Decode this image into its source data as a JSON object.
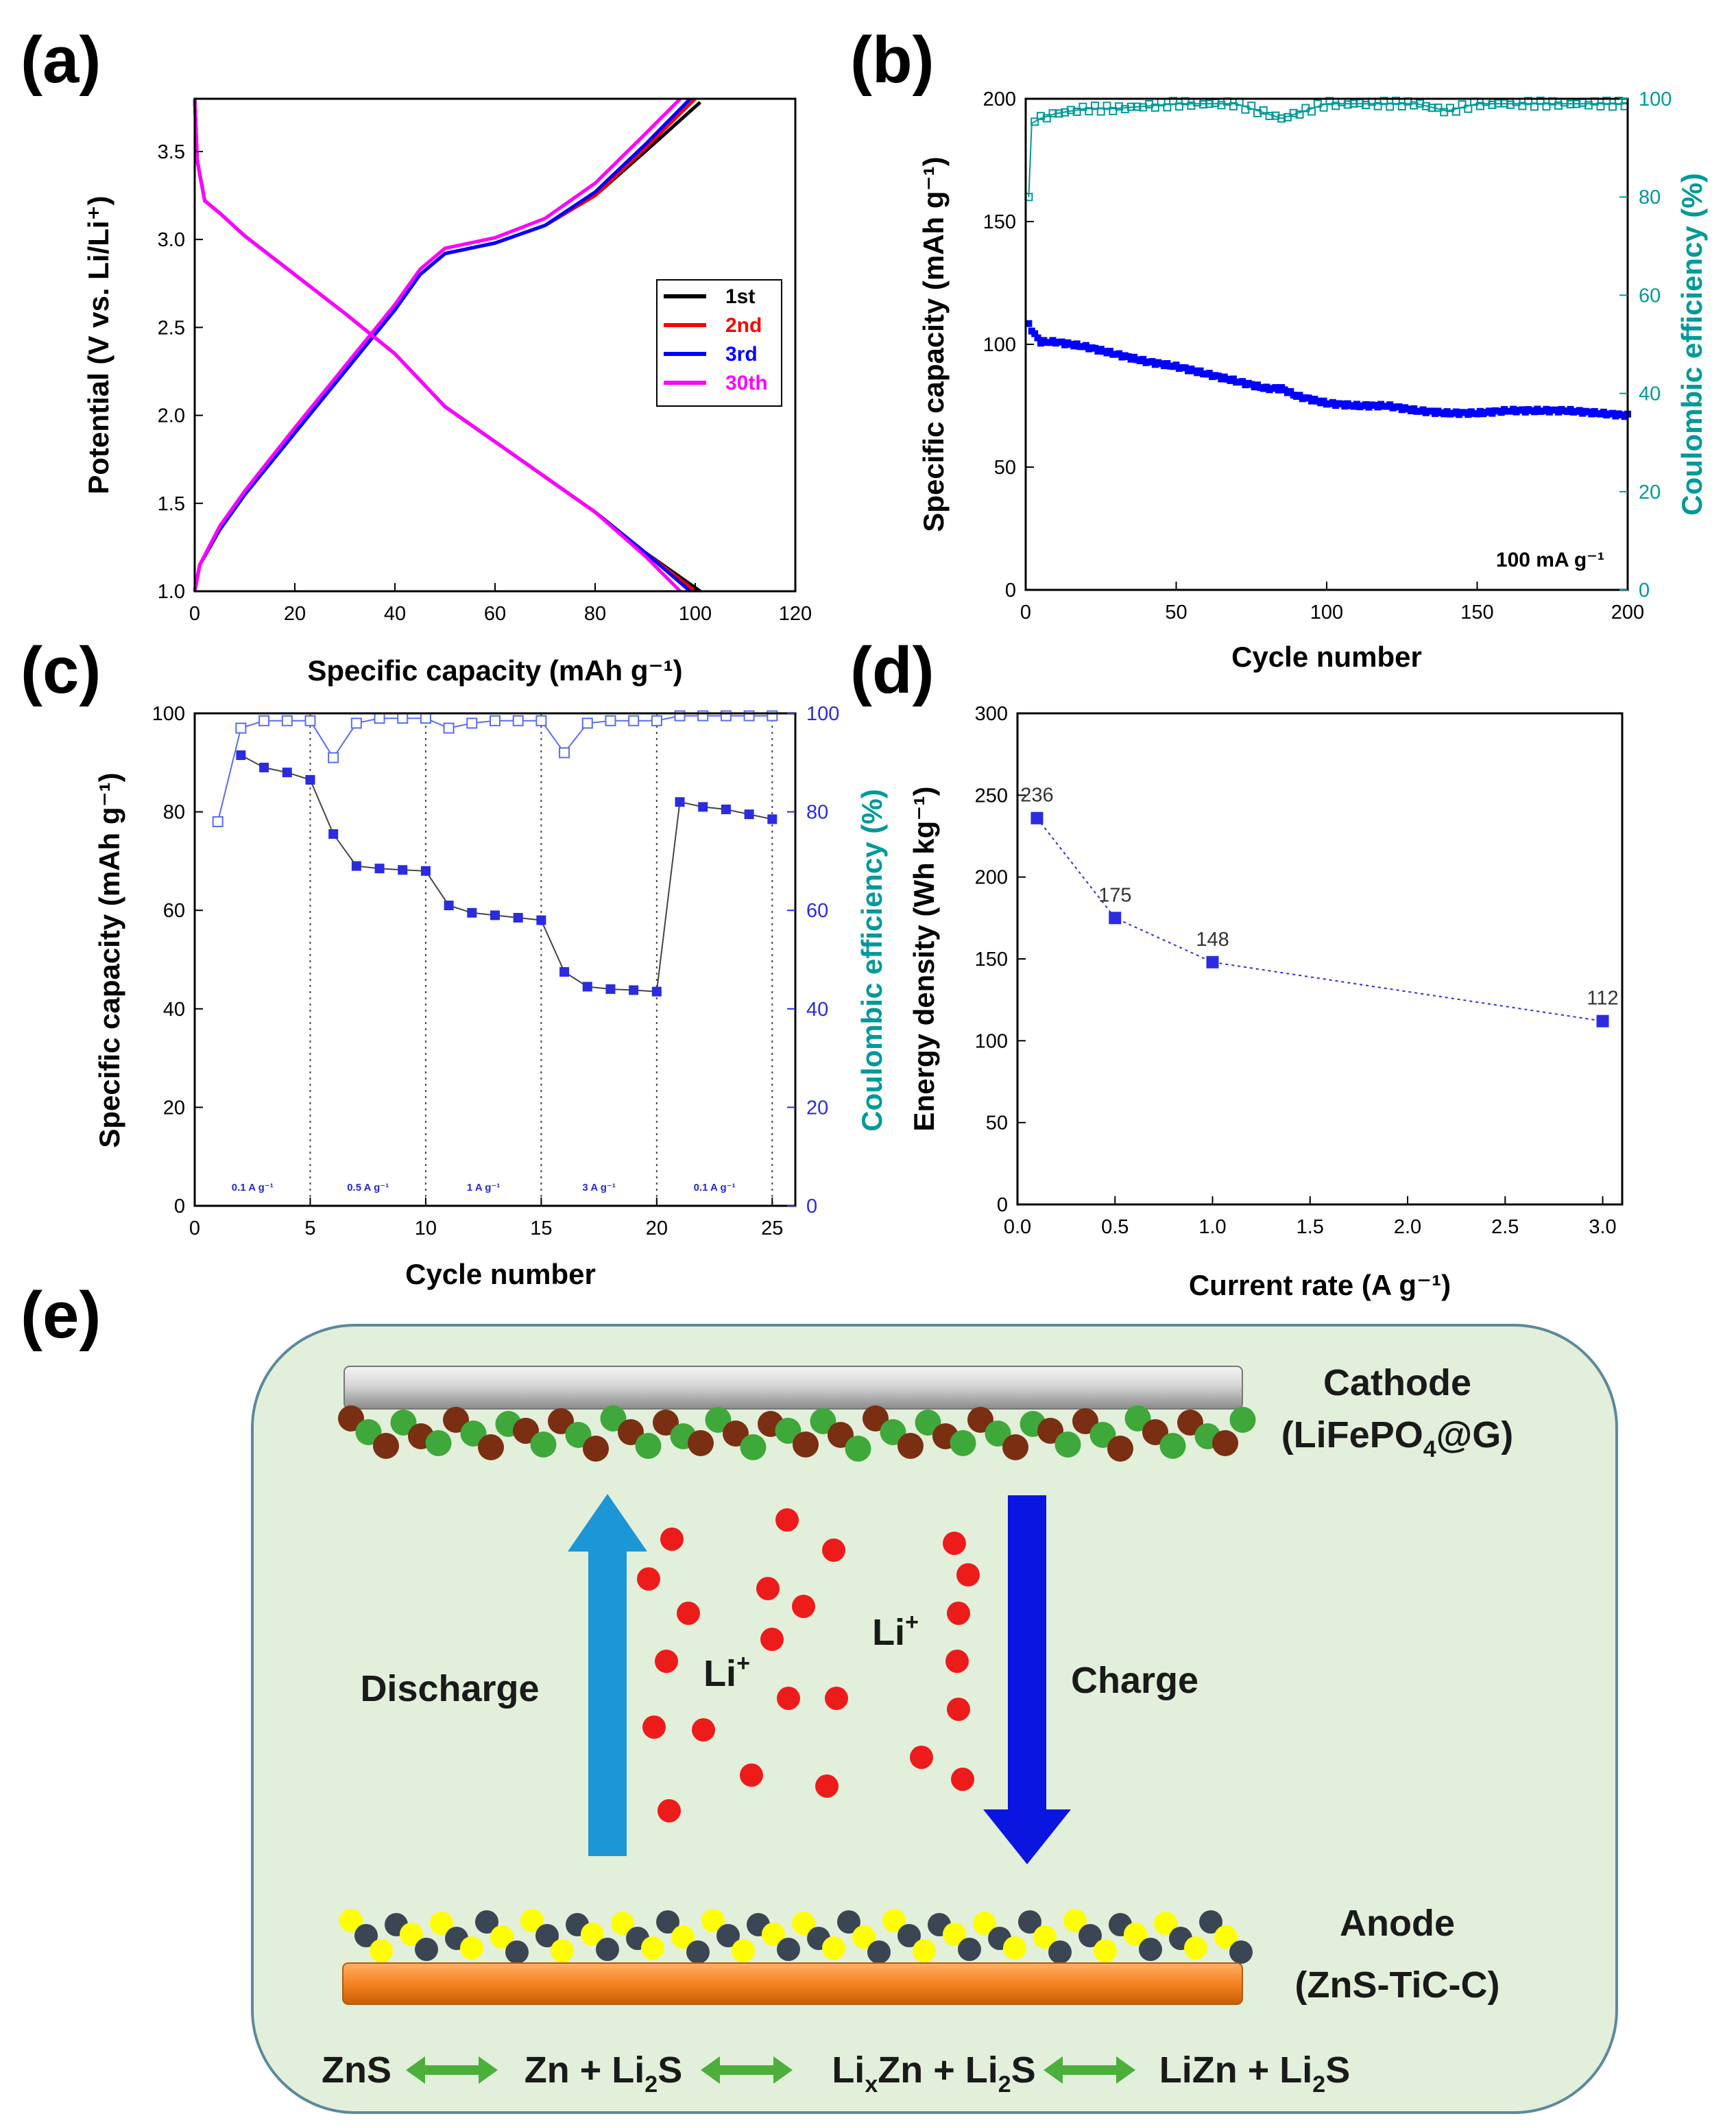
{
  "panel_labels": [
    "(a)",
    "(b)",
    "(c)",
    "(d)",
    "(e)"
  ],
  "chart_data": [
    {
      "panel": "a",
      "type": "line",
      "xlabel": "Specific capacity (mAh g⁻¹)",
      "ylabel": "Potential (V vs. Li/Li⁺)",
      "xlim": [
        0,
        120
      ],
      "ylim": [
        1.0,
        3.8
      ],
      "xticks": [
        "0",
        "20",
        "40",
        "60",
        "80",
        "100",
        "120"
      ],
      "yticks": [
        "1.0",
        "1.5",
        "2.0",
        "2.5",
        "3.0",
        "3.5"
      ],
      "legend": [
        "1st",
        "2nd",
        "3rd",
        "30th"
      ],
      "legend_position": "center-right",
      "series": [
        {
          "name": "1st",
          "color": "#000000",
          "end_capacity": 101,
          "discharge": [
            [
              0,
              3.8
            ],
            [
              0.5,
              3.45
            ],
            [
              2,
              3.22
            ],
            [
              5,
              3.15
            ],
            [
              10,
              3.02
            ],
            [
              20,
              2.8
            ],
            [
              30,
              2.58
            ],
            [
              40,
              2.35
            ],
            [
              50,
              2.05
            ],
            [
              60,
              1.85
            ],
            [
              70,
              1.65
            ],
            [
              80,
              1.45
            ],
            [
              90,
              1.22
            ],
            [
              101,
              1.0
            ]
          ],
          "charge": [
            [
              0,
              1.0
            ],
            [
              1,
              1.15
            ],
            [
              5,
              1.35
            ],
            [
              10,
              1.55
            ],
            [
              20,
              1.9
            ],
            [
              30,
              2.25
            ],
            [
              40,
              2.6
            ],
            [
              45,
              2.8
            ],
            [
              50,
              2.92
            ],
            [
              60,
              2.98
            ],
            [
              70,
              3.08
            ],
            [
              80,
              3.25
            ],
            [
              90,
              3.5
            ],
            [
              101,
              3.78
            ]
          ]
        },
        {
          "name": "2nd",
          "color": "#ff0000",
          "end_capacity": 100,
          "discharge": [
            [
              0,
              3.8
            ],
            [
              0.5,
              3.45
            ],
            [
              2,
              3.22
            ],
            [
              5,
              3.15
            ],
            [
              10,
              3.02
            ],
            [
              20,
              2.8
            ],
            [
              30,
              2.58
            ],
            [
              40,
              2.35
            ],
            [
              50,
              2.05
            ],
            [
              60,
              1.85
            ],
            [
              70,
              1.65
            ],
            [
              80,
              1.45
            ],
            [
              90,
              1.22
            ],
            [
              100,
              1.0
            ]
          ],
          "charge": [
            [
              0,
              1.0
            ],
            [
              1,
              1.15
            ],
            [
              5,
              1.35
            ],
            [
              10,
              1.55
            ],
            [
              20,
              1.9
            ],
            [
              30,
              2.25
            ],
            [
              40,
              2.6
            ],
            [
              45,
              2.8
            ],
            [
              50,
              2.92
            ],
            [
              60,
              2.98
            ],
            [
              70,
              3.08
            ],
            [
              80,
              3.25
            ],
            [
              90,
              3.52
            ],
            [
              100,
              3.8
            ]
          ]
        },
        {
          "name": "3rd",
          "color": "#0000ff",
          "end_capacity": 99,
          "discharge": [
            [
              0,
              3.8
            ],
            [
              0.5,
              3.45
            ],
            [
              2,
              3.22
            ],
            [
              5,
              3.15
            ],
            [
              10,
              3.02
            ],
            [
              20,
              2.8
            ],
            [
              30,
              2.58
            ],
            [
              40,
              2.35
            ],
            [
              50,
              2.05
            ],
            [
              60,
              1.85
            ],
            [
              70,
              1.65
            ],
            [
              80,
              1.45
            ],
            [
              90,
              1.22
            ],
            [
              99,
              1.0
            ]
          ],
          "charge": [
            [
              0,
              1.0
            ],
            [
              1,
              1.15
            ],
            [
              5,
              1.35
            ],
            [
              10,
              1.55
            ],
            [
              20,
              1.9
            ],
            [
              30,
              2.25
            ],
            [
              40,
              2.6
            ],
            [
              45,
              2.8
            ],
            [
              50,
              2.92
            ],
            [
              60,
              2.98
            ],
            [
              70,
              3.08
            ],
            [
              80,
              3.27
            ],
            [
              90,
              3.54
            ],
            [
              99,
              3.8
            ]
          ]
        },
        {
          "name": "30th",
          "color": "#ff00ff",
          "end_capacity": 97,
          "discharge": [
            [
              0,
              3.8
            ],
            [
              0.5,
              3.45
            ],
            [
              2,
              3.22
            ],
            [
              5,
              3.15
            ],
            [
              10,
              3.02
            ],
            [
              20,
              2.8
            ],
            [
              30,
              2.58
            ],
            [
              40,
              2.35
            ],
            [
              50,
              2.05
            ],
            [
              60,
              1.85
            ],
            [
              70,
              1.65
            ],
            [
              80,
              1.45
            ],
            [
              90,
              1.2
            ],
            [
              97,
              1.0
            ]
          ],
          "charge": [
            [
              0,
              1.0
            ],
            [
              1,
              1.15
            ],
            [
              5,
              1.37
            ],
            [
              10,
              1.57
            ],
            [
              20,
              1.93
            ],
            [
              30,
              2.28
            ],
            [
              40,
              2.63
            ],
            [
              45,
              2.83
            ],
            [
              50,
              2.95
            ],
            [
              60,
              3.01
            ],
            [
              70,
              3.12
            ],
            [
              80,
              3.32
            ],
            [
              90,
              3.6
            ],
            [
              97,
              3.8
            ]
          ]
        }
      ]
    },
    {
      "panel": "b",
      "type": "scatter",
      "xlabel": "Cycle number",
      "ylabel": "Specific capacity (mAh g⁻¹)",
      "ylabel_right": "Coulombic efficiency (%)",
      "xlim": [
        0,
        200
      ],
      "ylim": [
        0,
        200
      ],
      "ylim_right": [
        0,
        100
      ],
      "xticks": [
        "0",
        "50",
        "100",
        "150",
        "200"
      ],
      "yticks": [
        "0",
        "50",
        "100",
        "150",
        "200"
      ],
      "yticks_right": [
        "0",
        "20",
        "40",
        "60",
        "80",
        "100"
      ],
      "annotation": "100 mA g⁻¹",
      "capacity_color": "#0000ff",
      "ce_color": "#009999",
      "capacity_points": [
        [
          1,
          108
        ],
        [
          3,
          104
        ],
        [
          5,
          101
        ],
        [
          10,
          101
        ],
        [
          20,
          99
        ],
        [
          30,
          96
        ],
        [
          40,
          93
        ],
        [
          50,
          91
        ],
        [
          60,
          88
        ],
        [
          70,
          85
        ],
        [
          80,
          82
        ],
        [
          85,
          82
        ],
        [
          90,
          79
        ],
        [
          100,
          76
        ],
        [
          110,
          75
        ],
        [
          120,
          75
        ],
        [
          130,
          73
        ],
        [
          140,
          72
        ],
        [
          150,
          72
        ],
        [
          160,
          73
        ],
        [
          170,
          73
        ],
        [
          180,
          73
        ],
        [
          190,
          72
        ],
        [
          200,
          71
        ]
      ],
      "ce_points": [
        [
          1,
          80
        ],
        [
          2,
          95
        ],
        [
          5,
          96
        ],
        [
          10,
          97
        ],
        [
          20,
          98
        ],
        [
          30,
          98
        ],
        [
          40,
          98.5
        ],
        [
          50,
          99
        ],
        [
          70,
          99
        ],
        [
          85,
          96
        ],
        [
          100,
          99
        ],
        [
          130,
          99
        ],
        [
          140,
          97.5
        ],
        [
          150,
          99
        ],
        [
          200,
          99
        ]
      ]
    },
    {
      "panel": "c",
      "type": "line",
      "xlabel": "Cycle number",
      "ylabel": "Specific capacity (mAh g⁻¹)",
      "ylabel_right": "Coulombic efficiency (%)",
      "xlim": [
        0,
        26
      ],
      "ylim": [
        0,
        100
      ],
      "ylim_right": [
        0,
        100
      ],
      "xticks": [
        "0",
        "5",
        "10",
        "15",
        "20",
        "25"
      ],
      "yticks": [
        "0",
        "20",
        "40",
        "60",
        "80",
        "100"
      ],
      "yticks_right": [
        "0",
        "20",
        "40",
        "60",
        "80",
        "100"
      ],
      "rate_dividers": [
        5,
        10,
        15,
        20,
        25
      ],
      "rate_labels": [
        {
          "text": "0.1 A g⁻¹",
          "x": 2.5
        },
        {
          "text": "0.5 A g⁻¹",
          "x": 7.5
        },
        {
          "text": "1 A g⁻¹",
          "x": 12.5
        },
        {
          "text": "3 A g⁻¹",
          "x": 17.5
        },
        {
          "text": "0.1 A g⁻¹",
          "x": 22.5
        }
      ],
      "capacity": {
        "x": [
          2,
          3,
          4,
          5,
          6,
          7,
          8,
          9,
          10,
          11,
          12,
          13,
          14,
          15,
          16,
          17,
          18,
          19,
          20,
          21,
          22,
          23,
          24,
          25
        ],
        "y": [
          91.5,
          89,
          88,
          86.5,
          75.5,
          69,
          68.5,
          68.2,
          68,
          61,
          59.5,
          59,
          58.5,
          58,
          47.5,
          44.5,
          44,
          43.8,
          43.5,
          82,
          81,
          80.5,
          79.5,
          78.5
        ]
      },
      "ce": {
        "x": [
          1,
          2,
          3,
          4,
          5,
          6,
          7,
          8,
          9,
          10,
          11,
          12,
          13,
          14,
          15,
          16,
          17,
          18,
          19,
          20,
          21,
          22,
          23,
          24,
          25
        ],
        "y": [
          78,
          97,
          98.5,
          98.5,
          98.5,
          91,
          98,
          99,
          99,
          99,
          97,
          98,
          98.5,
          98.5,
          98.5,
          92,
          98,
          98.5,
          98.5,
          98.5,
          99.5,
          99.5,
          99.5,
          99.5,
          99.5
        ]
      },
      "color": "#2b2be0"
    },
    {
      "panel": "d",
      "type": "line",
      "xlabel": "Current rate (A g⁻¹)",
      "ylabel": "Energy density (Wh kg⁻¹)",
      "xlim": [
        0,
        3.1
      ],
      "ylim": [
        0,
        300
      ],
      "xticks": [
        "0.0",
        "0.5",
        "1.0",
        "1.5",
        "2.0",
        "2.5",
        "3.0"
      ],
      "yticks": [
        "0",
        "50",
        "100",
        "150",
        "200",
        "250",
        "300"
      ],
      "x": [
        0.1,
        0.5,
        1.0,
        3.0
      ],
      "y": [
        236,
        175,
        148,
        112
      ],
      "labels": [
        "236",
        "175",
        "148",
        "112"
      ],
      "color": "#2b2be0"
    }
  ],
  "diagram": {
    "cathode_title": "Cathode",
    "cathode_formula": [
      "(LiFePO",
      "4",
      "@G)"
    ],
    "anode_title": "Anode",
    "anode_formula": "(ZnS-TiC-C)",
    "discharge_label": "Discharge",
    "charge_label": "Charge",
    "li_ion_label": "Li",
    "li_ion_charge": "+",
    "reaction": {
      "t1": "ZnS",
      "t2a": "Zn + Li",
      "t2s": "2",
      "t2b": "S",
      "t3a": "Li",
      "t3x": "x",
      "t3b": "Zn + Li",
      "t3s": "2",
      "t3c": "S",
      "t4a": "LiZn + Li",
      "t4s": "2",
      "t4b": "S"
    },
    "colors": {
      "panel_bg": "#e2efda",
      "panel_border": "#5b8a9a",
      "discharge_arrow": "#1c96d4",
      "charge_arrow": "#0a16e0",
      "li_ion": "#ee1b1b",
      "reaction_arrow": "#4caf3c",
      "anode_bar": "#f58220",
      "particle_yellow": "#ffff00",
      "particle_dark": "#3a4654",
      "particle_green": "#3fa83a",
      "particle_brown": "#7a2e12"
    }
  }
}
